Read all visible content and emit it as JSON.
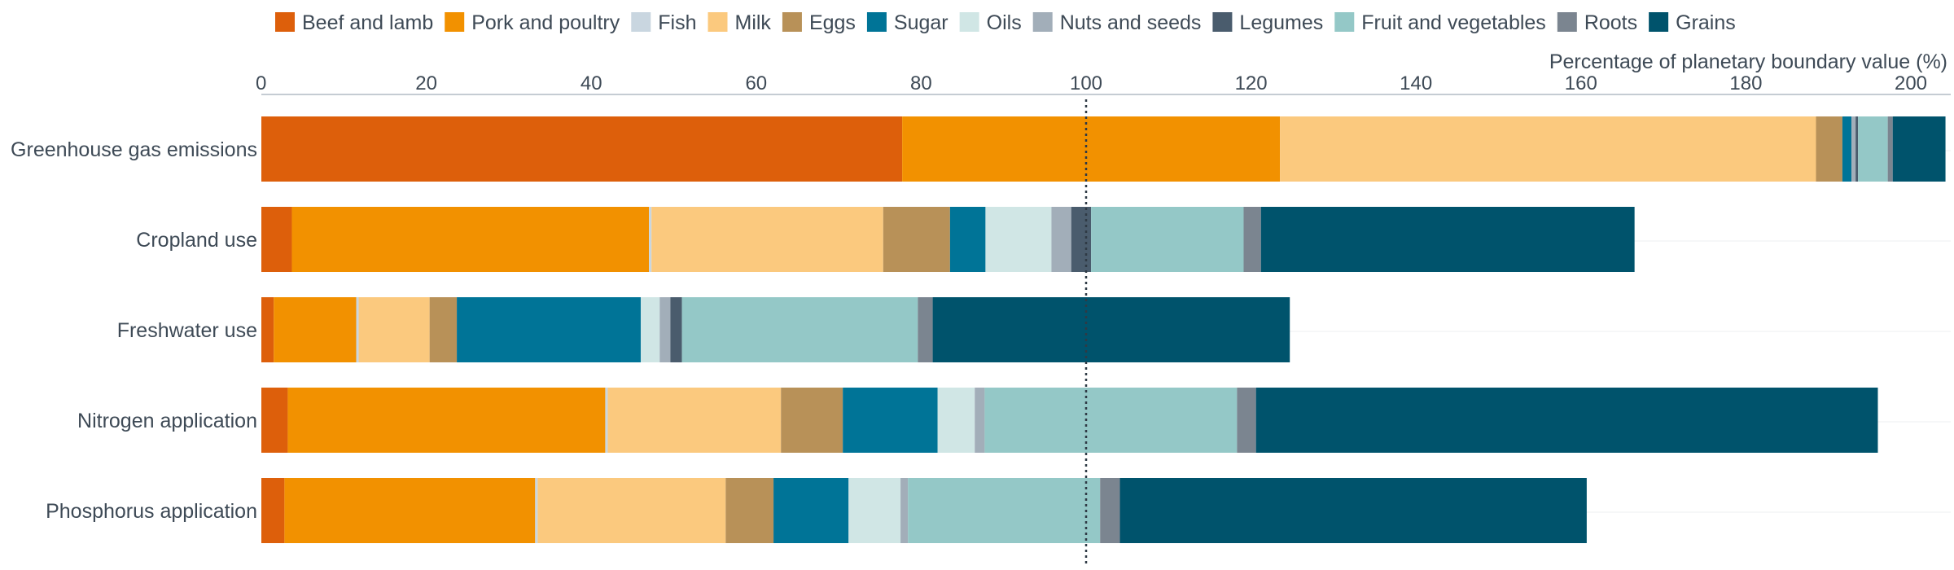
{
  "chart_data": {
    "type": "bar",
    "orientation": "horizontal",
    "stacked": true,
    "title": "",
    "xlabel": "Percentage of planetary boundary value (%)",
    "ylabel": "",
    "xlim": [
      0,
      205
    ],
    "x_ticks": [
      0,
      20,
      40,
      60,
      80,
      100,
      120,
      140,
      160,
      180,
      200
    ],
    "reference_line": {
      "value": 100,
      "style": "dotted"
    },
    "grid": false,
    "legend_position": "top",
    "categories": [
      "Greenhouse gas emissions",
      "Cropland use",
      "Freshwater use",
      "Nitrogen application",
      "Phosphorus application"
    ],
    "series": [
      {
        "name": "Beef and lamb",
        "color": "#dd5f0b",
        "values": [
          77.7,
          3.7,
          1.5,
          3.2,
          2.8
        ]
      },
      {
        "name": "Pork and poultry",
        "color": "#f29100",
        "values": [
          45.8,
          43.3,
          10.0,
          38.5,
          30.4
        ]
      },
      {
        "name": "Fish",
        "color": "#c9d6e0",
        "values": [
          0.0,
          0.3,
          0.3,
          0.3,
          0.3
        ]
      },
      {
        "name": "Milk",
        "color": "#fbc97e",
        "values": [
          65.0,
          28.1,
          8.6,
          21.0,
          22.8
        ]
      },
      {
        "name": "Eggs",
        "color": "#b89158",
        "values": [
          3.2,
          8.1,
          3.3,
          7.5,
          5.8
        ]
      },
      {
        "name": "Sugar",
        "color": "#007497",
        "values": [
          1.1,
          4.3,
          22.3,
          11.5,
          9.1
        ]
      },
      {
        "name": "Oils",
        "color": "#d0e6e5",
        "values": [
          0.0,
          8.0,
          2.3,
          4.5,
          6.3
        ]
      },
      {
        "name": "Nuts and seeds",
        "color": "#a2aeb9",
        "values": [
          0.5,
          2.4,
          1.3,
          1.2,
          0.9
        ]
      },
      {
        "name": "Legumes",
        "color": "#4a5c6d",
        "values": [
          0.3,
          2.4,
          1.4,
          0.0,
          0.0
        ]
      },
      {
        "name": "Fruit and vegetables",
        "color": "#94c8c7",
        "values": [
          3.6,
          18.5,
          28.6,
          30.6,
          23.3
        ]
      },
      {
        "name": "Roots",
        "color": "#7b8590",
        "values": [
          0.6,
          2.1,
          1.8,
          2.3,
          2.4
        ]
      },
      {
        "name": "Grains",
        "color": "#00536c",
        "values": [
          6.4,
          45.3,
          43.3,
          75.4,
          56.6
        ]
      }
    ]
  }
}
